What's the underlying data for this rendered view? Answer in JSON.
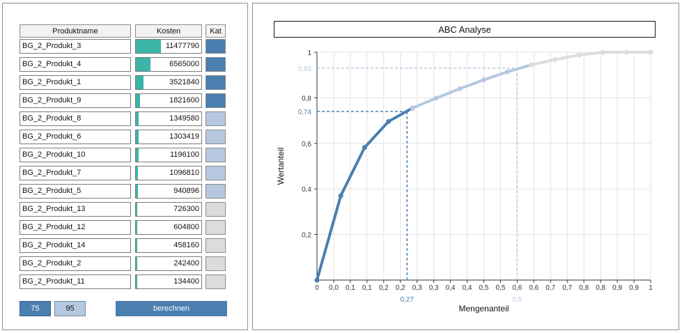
{
  "table": {
    "headers": {
      "name": "Produktname",
      "cost": "Kosten",
      "cat": "Kat"
    },
    "rows": [
      {
        "name": "BG_2_Produkt_3",
        "cost": "11477790",
        "cost_value": 11477790,
        "category": "A"
      },
      {
        "name": "BG_2_Produkt_4",
        "cost": "6565000",
        "cost_value": 6565000,
        "category": "A"
      },
      {
        "name": "BG_2_Produkt_1",
        "cost": "3521840",
        "cost_value": 3521840,
        "category": "A"
      },
      {
        "name": "BG_2_Produkt_9",
        "cost": "1821600",
        "cost_value": 1821600,
        "category": "A"
      },
      {
        "name": "BG_2_Produkt_8",
        "cost": "1349580",
        "cost_value": 1349580,
        "category": "B"
      },
      {
        "name": "BG_2_Produkt_6",
        "cost": "1303419",
        "cost_value": 1303419,
        "category": "B"
      },
      {
        "name": "BG_2_Produkt_10",
        "cost": "1196100",
        "cost_value": 1196100,
        "category": "B"
      },
      {
        "name": "BG_2_Produkt_7",
        "cost": "1096810",
        "cost_value": 1096810,
        "category": "B"
      },
      {
        "name": "BG_2_Produkt_5",
        "cost": "940896",
        "cost_value": 940896,
        "category": "B"
      },
      {
        "name": "BG_2_Produkt_13",
        "cost": "726300",
        "cost_value": 726300,
        "category": "C"
      },
      {
        "name": "BG_2_Produkt_12",
        "cost": "604800",
        "cost_value": 604800,
        "category": "C"
      },
      {
        "name": "BG_2_Produkt_14",
        "cost": "458160",
        "cost_value": 458160,
        "category": "C"
      },
      {
        "name": "BG_2_Produkt_2",
        "cost": "242400",
        "cost_value": 242400,
        "category": "C"
      },
      {
        "name": "BG_2_Produkt_11",
        "cost": "134400",
        "cost_value": 134400,
        "category": "C"
      }
    ]
  },
  "colors": {
    "A": "#4a7fb0",
    "B": "#b6c8e0",
    "C": "#dcdcdc",
    "bar": "#3bb5a8"
  },
  "controls": {
    "threshold_a": "75",
    "threshold_b": "95",
    "calculate_label": "berechnen"
  },
  "chart_data": {
    "type": "line",
    "title": "ABC Analyse",
    "xlabel": "Mengenanteil",
    "ylabel": "Wertanteil",
    "xlim": [
      0,
      1
    ],
    "ylim": [
      0,
      1
    ],
    "x_ticks": [
      "0",
      "0,0",
      "0,1",
      "0,1",
      "0,2",
      "0,2",
      "0,3",
      "0,3",
      "0,4",
      "0,4",
      "0,5",
      "0,5",
      "0,6",
      "0,6",
      "0,7",
      "0,7",
      "0,8",
      "0,8",
      "0,9",
      "0,9",
      "1"
    ],
    "y_ticks": [
      {
        "value": 0.2,
        "label": "0,2"
      },
      {
        "value": 0.4,
        "label": "0,4"
      },
      {
        "value": 0.6,
        "label": "0,6"
      },
      {
        "value": 0.8,
        "label": "0,8"
      },
      {
        "value": 1,
        "label": "1"
      }
    ],
    "grid": true,
    "series": [
      {
        "category": "A",
        "points": [
          [
            0,
            0
          ],
          [
            0.0714,
            0.3704
          ],
          [
            0.1429,
            0.5823
          ],
          [
            0.2143,
            0.6959
          ],
          [
            0.2857,
            0.7547
          ]
        ]
      },
      {
        "category": "B",
        "points": [
          [
            0.2857,
            0.7547
          ],
          [
            0.3571,
            0.7983
          ],
          [
            0.4286,
            0.8403
          ],
          [
            0.5,
            0.8789
          ],
          [
            0.5714,
            0.9143
          ],
          [
            0.6429,
            0.9447
          ]
        ]
      },
      {
        "category": "C",
        "points": [
          [
            0.6429,
            0.9447
          ],
          [
            0.7143,
            0.9681
          ],
          [
            0.7857,
            0.9877
          ],
          [
            0.8571,
            1.0
          ],
          [
            0.9286,
            1.0
          ],
          [
            1,
            1
          ]
        ]
      }
    ],
    "markers": [
      {
        "category": "A",
        "x_label": "0,27",
        "y_label": "0,74",
        "x": 0.27,
        "y": 0.74
      },
      {
        "category": "B",
        "x_label": "0,6",
        "y_label": "0,93",
        "x": 0.6,
        "y": 0.93
      }
    ]
  }
}
